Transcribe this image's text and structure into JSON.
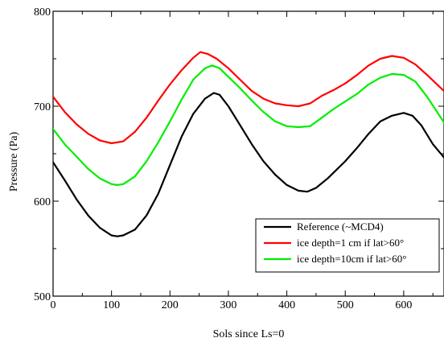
{
  "chart_data": {
    "type": "line",
    "title": "",
    "xlabel": "Sols since Ls=0",
    "ylabel": "Pressure (Pa)",
    "xlim": [
      0,
      669
    ],
    "ylim": [
      500,
      800
    ],
    "x_ticks": [
      0,
      100,
      200,
      300,
      400,
      500,
      600
    ],
    "y_ticks": [
      500,
      600,
      700,
      800
    ],
    "grid": false,
    "legend_position": "lower-right",
    "series": [
      {
        "name": "Reference (~MCD4)",
        "color": "#000000",
        "points": [
          [
            0,
            641
          ],
          [
            20,
            622
          ],
          [
            40,
            602
          ],
          [
            60,
            585
          ],
          [
            80,
            572
          ],
          [
            100,
            564
          ],
          [
            110,
            563
          ],
          [
            120,
            564
          ],
          [
            140,
            570
          ],
          [
            160,
            585
          ],
          [
            180,
            608
          ],
          [
            200,
            638
          ],
          [
            220,
            668
          ],
          [
            240,
            692
          ],
          [
            260,
            708
          ],
          [
            275,
            714
          ],
          [
            285,
            712
          ],
          [
            300,
            700
          ],
          [
            320,
            680
          ],
          [
            340,
            660
          ],
          [
            360,
            642
          ],
          [
            380,
            628
          ],
          [
            400,
            617
          ],
          [
            420,
            611
          ],
          [
            435,
            610
          ],
          [
            450,
            614
          ],
          [
            470,
            624
          ],
          [
            500,
            642
          ],
          [
            520,
            656
          ],
          [
            540,
            671
          ],
          [
            560,
            684
          ],
          [
            580,
            690
          ],
          [
            600,
            693
          ],
          [
            615,
            690
          ],
          [
            630,
            680
          ],
          [
            650,
            660
          ],
          [
            669,
            646
          ]
        ]
      },
      {
        "name": "ice depth=1 cm if lat>60°",
        "color": "#ff0000",
        "points": [
          [
            0,
            710
          ],
          [
            20,
            694
          ],
          [
            40,
            681
          ],
          [
            60,
            671
          ],
          [
            80,
            664
          ],
          [
            100,
            661
          ],
          [
            120,
            663
          ],
          [
            140,
            673
          ],
          [
            160,
            688
          ],
          [
            180,
            706
          ],
          [
            200,
            723
          ],
          [
            220,
            738
          ],
          [
            240,
            751
          ],
          [
            252,
            757
          ],
          [
            265,
            755
          ],
          [
            280,
            750
          ],
          [
            300,
            740
          ],
          [
            320,
            728
          ],
          [
            340,
            716
          ],
          [
            360,
            708
          ],
          [
            380,
            703
          ],
          [
            400,
            701
          ],
          [
            420,
            700
          ],
          [
            440,
            703
          ],
          [
            460,
            711
          ],
          [
            480,
            717
          ],
          [
            500,
            724
          ],
          [
            520,
            733
          ],
          [
            540,
            743
          ],
          [
            560,
            750
          ],
          [
            580,
            753
          ],
          [
            600,
            751
          ],
          [
            620,
            744
          ],
          [
            640,
            733
          ],
          [
            669,
            716
          ]
        ]
      },
      {
        "name": "ice depth=10cm if lat>60°",
        "color": "#00ee00",
        "points": [
          [
            0,
            676
          ],
          [
            20,
            660
          ],
          [
            40,
            647
          ],
          [
            60,
            634
          ],
          [
            80,
            624
          ],
          [
            100,
            618
          ],
          [
            110,
            617
          ],
          [
            120,
            618
          ],
          [
            140,
            626
          ],
          [
            160,
            642
          ],
          [
            180,
            662
          ],
          [
            200,
            684
          ],
          [
            220,
            707
          ],
          [
            240,
            728
          ],
          [
            260,
            740
          ],
          [
            272,
            743
          ],
          [
            285,
            740
          ],
          [
            300,
            731
          ],
          [
            320,
            719
          ],
          [
            340,
            706
          ],
          [
            360,
            694
          ],
          [
            380,
            684
          ],
          [
            400,
            679
          ],
          [
            420,
            678
          ],
          [
            440,
            679
          ],
          [
            460,
            688
          ],
          [
            480,
            697
          ],
          [
            500,
            705
          ],
          [
            520,
            713
          ],
          [
            540,
            723
          ],
          [
            560,
            730
          ],
          [
            580,
            734
          ],
          [
            600,
            733
          ],
          [
            620,
            726
          ],
          [
            640,
            710
          ],
          [
            669,
            683
          ]
        ]
      }
    ]
  }
}
